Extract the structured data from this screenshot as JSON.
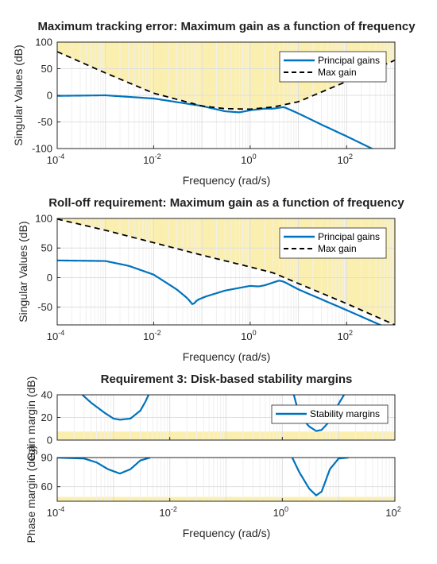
{
  "colors": {
    "principal": "#0072BD",
    "max_gain": "#000000",
    "forbidden_region": "#FBEFB0",
    "grid": "#dfdfdf",
    "axis": "#262626"
  },
  "chart_data": [
    {
      "type": "line",
      "title": "Maximum tracking error: Maximum gain as a function of frequency",
      "xlabel": "Frequency (rad/s)",
      "ylabel": "Singular Values (dB)",
      "xscale": "log",
      "xlim": [
        0.0001,
        1000
      ],
      "ylim": [
        -100,
        100
      ],
      "xticks": [
        {
          "base": "10",
          "exp": "-4"
        },
        {
          "base": "10",
          "exp": "-2"
        },
        {
          "base": "10",
          "exp": "0"
        },
        {
          "base": "10",
          "exp": "2"
        }
      ],
      "yticks": [
        "100",
        "50",
        "0",
        "-50",
        "-100"
      ],
      "legend": {
        "position": "top-right",
        "entries": [
          "Principal gains",
          "Max gain"
        ]
      },
      "grid": true,
      "series": [
        {
          "name": "Principal gains",
          "style": "solid",
          "x": [
            0.0001,
            0.001,
            0.01,
            0.1,
            0.3,
            0.6,
            1,
            2,
            3,
            5,
            10,
            30,
            100,
            300,
            1000
          ],
          "y": [
            -1,
            0,
            -6,
            -20,
            -30,
            -32,
            -28,
            -25,
            -25,
            -22,
            -34,
            -55,
            -77,
            -98,
            -120
          ]
        },
        {
          "name": "Max gain",
          "style": "dashed",
          "x": [
            0.0001,
            0.001,
            0.01,
            0.1,
            0.3,
            1,
            3,
            10,
            100,
            1000
          ],
          "y": [
            82,
            42,
            4,
            -20,
            -25,
            -26,
            -22,
            -12,
            26,
            66
          ]
        }
      ],
      "forbidden_region": "above Max gain"
    },
    {
      "type": "line",
      "title": "Roll-off requirement: Maximum gain as a function of frequency",
      "xlabel": "Frequency (rad/s)",
      "ylabel": "Singular Values (dB)",
      "xscale": "log",
      "xlim": [
        0.0001,
        1000
      ],
      "ylim": [
        -80,
        100
      ],
      "xticks": [
        {
          "base": "10",
          "exp": "-4"
        },
        {
          "base": "10",
          "exp": "-2"
        },
        {
          "base": "10",
          "exp": "0"
        },
        {
          "base": "10",
          "exp": "2"
        }
      ],
      "yticks": [
        "100",
        "50",
        "0",
        "-50"
      ],
      "legend": {
        "position": "top-right",
        "entries": [
          "Principal gains",
          "Max gain"
        ]
      },
      "grid": true,
      "series": [
        {
          "name": "Principal gains",
          "style": "solid",
          "x": [
            0.0001,
            0.001,
            0.003,
            0.01,
            0.03,
            0.05,
            0.065,
            0.08,
            0.12,
            0.3,
            1,
            1.5,
            2,
            4,
            5,
            10,
            100,
            1000
          ],
          "y": [
            29,
            28,
            20,
            5,
            -20,
            -35,
            -46,
            -38,
            -32,
            -22,
            -14,
            -15,
            -13,
            -5,
            -7,
            -20,
            -55,
            -91
          ]
        },
        {
          "name": "Max gain",
          "style": "dashed",
          "x": [
            0.0001,
            0.001,
            0.01,
            0.1,
            1,
            3,
            10,
            100,
            1000
          ],
          "y": [
            99,
            80,
            59,
            38,
            18,
            8,
            -10,
            -44,
            -80
          ]
        }
      ],
      "forbidden_region": "above Max gain"
    },
    {
      "type": "line",
      "title": "Requirement 3: Disk-based stability margins",
      "xlabel": "Frequency (rad/s)",
      "xscale": "log",
      "xlim": [
        0.0001,
        100
      ],
      "xticks": [
        {
          "base": "10",
          "exp": "-4"
        },
        {
          "base": "10",
          "exp": "-2"
        },
        {
          "base": "10",
          "exp": "0"
        },
        {
          "base": "10",
          "exp": "2"
        }
      ],
      "legend": {
        "position": "top-right",
        "entries": [
          "Stability margins"
        ]
      },
      "grid": true,
      "subplots": [
        {
          "ylabel": "Gain margin (dB)",
          "ylim": [
            0,
            40
          ],
          "yticks": [
            "40",
            "20",
            "0"
          ],
          "forbidden_region": {
            "below": 7.6
          },
          "series": [
            {
              "name": "Stability margins",
              "segment": 1,
              "x": [
                0.00028,
                0.0004,
                0.0007,
                0.001,
                0.0013,
                0.002,
                0.003,
                0.0037,
                0.0042
              ],
              "y": [
                40,
                33,
                24,
                19,
                18,
                19,
                26,
                34,
                40
              ]
            },
            {
              "name": "Stability margins",
              "segment": 2,
              "x": [
                1.6,
                2,
                3,
                4,
                5,
                7,
                10,
                12.5
              ],
              "y": [
                40,
                22,
                12,
                8,
                9,
                17,
                32,
                40
              ]
            }
          ]
        },
        {
          "ylabel": "Phase margin (deg)",
          "ylim": [
            45,
            90
          ],
          "yticks": [
            "90",
            "60"
          ],
          "forbidden_region": {
            "below": 49.5
          },
          "series": [
            {
              "name": "Stability margins",
              "segment": 1,
              "x": [
                0.0001,
                0.0003,
                0.0005,
                0.0008,
                0.0013,
                0.002,
                0.003,
                0.0045
              ],
              "y": [
                89.9,
                89,
                85,
                78,
                73.5,
                78,
                87,
                90
              ]
            },
            {
              "name": "Stability margins",
              "segment": 2,
              "x": [
                1.5,
                2,
                3,
                4,
                5,
                7,
                10,
                15
              ],
              "y": [
                90,
                75,
                58,
                51,
                55,
                78,
                89,
                90
              ]
            }
          ]
        }
      ]
    }
  ]
}
